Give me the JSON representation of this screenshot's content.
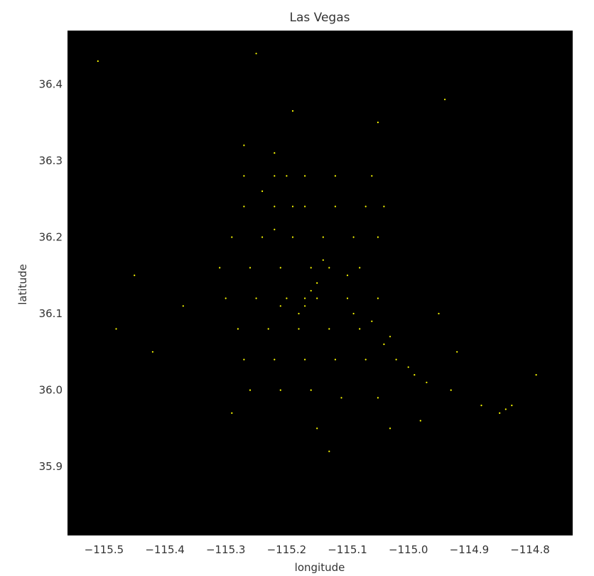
{
  "chart_data": {
    "type": "scatter",
    "title": "Las Vegas",
    "xlabel": "longitude",
    "ylabel": "latitude",
    "xlim": [
      -115.56,
      -114.73
    ],
    "ylim": [
      35.81,
      36.47
    ],
    "x_ticks": [
      -115.5,
      -115.4,
      -115.3,
      -115.2,
      -115.1,
      -115.0,
      -114.9,
      -114.8
    ],
    "x_tick_labels": [
      "−115.5",
      "−115.4",
      "−115.3",
      "−115.2",
      "−115.1",
      "−115.0",
      "−114.9",
      "−114.8"
    ],
    "y_ticks": [
      35.9,
      36.0,
      36.1,
      36.2,
      36.3,
      36.4
    ],
    "y_tick_labels": [
      "35.9",
      "36.0",
      "36.1",
      "36.2",
      "36.3",
      "36.4"
    ],
    "grid": false,
    "background_color": "#000000",
    "marker_color": "#ffff00",
    "series": [
      {
        "points": [
          [
            -115.51,
            36.43
          ],
          [
            -115.25,
            36.44
          ],
          [
            -115.19,
            36.365
          ],
          [
            -115.05,
            36.35
          ],
          [
            -114.94,
            36.38
          ],
          [
            -115.27,
            36.32
          ],
          [
            -115.22,
            36.31
          ],
          [
            -115.27,
            36.28
          ],
          [
            -115.22,
            36.28
          ],
          [
            -115.2,
            36.28
          ],
          [
            -115.17,
            36.28
          ],
          [
            -115.12,
            36.28
          ],
          [
            -115.06,
            36.28
          ],
          [
            -115.27,
            36.24
          ],
          [
            -115.22,
            36.24
          ],
          [
            -115.17,
            36.24
          ],
          [
            -115.12,
            36.24
          ],
          [
            -115.07,
            36.24
          ],
          [
            -115.04,
            36.24
          ],
          [
            -115.29,
            36.2
          ],
          [
            -115.24,
            36.2
          ],
          [
            -115.19,
            36.2
          ],
          [
            -115.14,
            36.2
          ],
          [
            -115.09,
            36.2
          ],
          [
            -115.05,
            36.2
          ],
          [
            -115.31,
            36.16
          ],
          [
            -115.26,
            36.16
          ],
          [
            -115.21,
            36.16
          ],
          [
            -115.16,
            36.16
          ],
          [
            -115.13,
            36.16
          ],
          [
            -115.08,
            36.16
          ],
          [
            -115.3,
            36.12
          ],
          [
            -115.25,
            36.12
          ],
          [
            -115.2,
            36.12
          ],
          [
            -115.17,
            36.12
          ],
          [
            -115.15,
            36.12
          ],
          [
            -115.1,
            36.12
          ],
          [
            -115.05,
            36.12
          ],
          [
            -115.28,
            36.08
          ],
          [
            -115.23,
            36.08
          ],
          [
            -115.18,
            36.08
          ],
          [
            -115.13,
            36.08
          ],
          [
            -115.08,
            36.08
          ],
          [
            -115.04,
            36.06
          ],
          [
            -115.27,
            36.04
          ],
          [
            -115.22,
            36.04
          ],
          [
            -115.17,
            36.04
          ],
          [
            -115.12,
            36.04
          ],
          [
            -115.07,
            36.04
          ],
          [
            -115.02,
            36.04
          ],
          [
            -114.99,
            36.02
          ],
          [
            -115.26,
            36.0
          ],
          [
            -115.21,
            36.0
          ],
          [
            -115.16,
            36.0
          ],
          [
            -115.11,
            35.99
          ],
          [
            -115.05,
            35.99
          ],
          [
            -114.84,
            35.975
          ],
          [
            -114.85,
            35.97
          ],
          [
            -114.83,
            35.98
          ],
          [
            -114.79,
            36.02
          ],
          [
            -114.95,
            36.1
          ],
          [
            -114.92,
            36.05
          ],
          [
            -115.37,
            36.11
          ],
          [
            -115.45,
            36.15
          ],
          [
            -115.48,
            36.08
          ],
          [
            -115.42,
            36.05
          ],
          [
            -115.29,
            35.97
          ],
          [
            -115.15,
            35.95
          ],
          [
            -115.13,
            35.92
          ],
          [
            -115.03,
            35.95
          ],
          [
            -114.98,
            35.96
          ],
          [
            -114.88,
            35.98
          ],
          [
            -114.93,
            36.0
          ],
          [
            -115.15,
            36.14
          ],
          [
            -115.17,
            36.11
          ],
          [
            -115.16,
            36.13
          ],
          [
            -115.18,
            36.1
          ],
          [
            -115.14,
            36.17
          ],
          [
            -115.21,
            36.11
          ],
          [
            -115.1,
            36.15
          ],
          [
            -115.03,
            36.07
          ],
          [
            -115.0,
            36.03
          ],
          [
            -114.97,
            36.01
          ],
          [
            -115.22,
            36.21
          ],
          [
            -115.19,
            36.24
          ],
          [
            -115.24,
            36.26
          ],
          [
            -115.09,
            36.1
          ],
          [
            -115.06,
            36.09
          ]
        ]
      }
    ]
  }
}
